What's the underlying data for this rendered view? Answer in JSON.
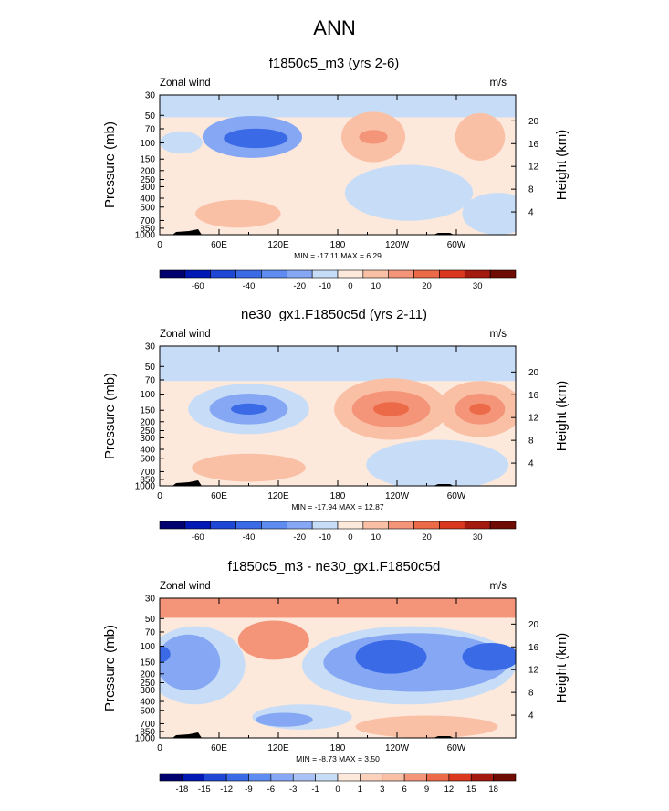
{
  "page": {
    "title": "ANN"
  },
  "chart_data": [
    {
      "type": "contour",
      "title": "f1850c5_m3 (yrs 2-6)",
      "left_label": "Zonal wind",
      "right_label": "m/s",
      "ylabel": "Pressure (mb)",
      "ylabel_right": "Height (km)",
      "x_ticks": [
        "0",
        "60E",
        "120E",
        "180",
        "120W",
        "60W"
      ],
      "y_ticks": [
        "30",
        "50",
        "70",
        "100",
        "150",
        "200",
        "250",
        "300",
        "400",
        "500",
        "700",
        "850",
        "1000"
      ],
      "height_ticks": [
        "20",
        "16",
        "12",
        "8",
        "4"
      ],
      "stats": "MIN = -17.11  MAX =  6.29",
      "colorbar_labels": [
        "-60",
        "-40",
        "-20",
        "-10",
        "0",
        "10",
        "20",
        "30"
      ],
      "features": [
        {
          "kind": "rect",
          "y1": 0,
          "y2": 0.16,
          "x1": 0,
          "x2": 1,
          "level": -1
        },
        {
          "kind": "blob",
          "cx": 0.26,
          "cy": 0.3,
          "rx": 0.14,
          "ry": 0.15,
          "level": -2
        },
        {
          "kind": "blob",
          "cx": 0.27,
          "cy": 0.31,
          "rx": 0.09,
          "ry": 0.07,
          "level": -3
        },
        {
          "kind": "blob",
          "cx": 0.06,
          "cy": 0.34,
          "rx": 0.06,
          "ry": 0.08,
          "level": -1
        },
        {
          "kind": "blob",
          "cx": 0.6,
          "cy": 0.3,
          "rx": 0.09,
          "ry": 0.18,
          "level": 1
        },
        {
          "kind": "blob",
          "cx": 0.6,
          "cy": 0.3,
          "rx": 0.04,
          "ry": 0.05,
          "level": 2
        },
        {
          "kind": "blob",
          "cx": 0.9,
          "cy": 0.3,
          "rx": 0.07,
          "ry": 0.17,
          "level": 1
        },
        {
          "kind": "blob",
          "cx": 0.22,
          "cy": 0.85,
          "rx": 0.12,
          "ry": 0.1,
          "level": 1
        },
        {
          "kind": "blob",
          "cx": 0.7,
          "cy": 0.7,
          "rx": 0.18,
          "ry": 0.2,
          "level": -1
        },
        {
          "kind": "blob",
          "cx": 0.95,
          "cy": 0.85,
          "rx": 0.1,
          "ry": 0.15,
          "level": -1
        }
      ]
    },
    {
      "type": "contour",
      "title": "ne30_gx1.F1850c5d (yrs 2-11)",
      "left_label": "Zonal wind",
      "right_label": "m/s",
      "ylabel": "Pressure (mb)",
      "ylabel_right": "Height (km)",
      "x_ticks": [
        "0",
        "60E",
        "120E",
        "180",
        "120W",
        "60W"
      ],
      "y_ticks": [
        "30",
        "50",
        "70",
        "100",
        "150",
        "200",
        "250",
        "300",
        "400",
        "500",
        "700",
        "850",
        "1000"
      ],
      "height_ticks": [
        "20",
        "16",
        "12",
        "8",
        "4"
      ],
      "stats": "MIN = -17.94  MAX = 12.87",
      "colorbar_labels": [
        "-60",
        "-40",
        "-20",
        "-10",
        "0",
        "10",
        "20",
        "30"
      ],
      "features": [
        {
          "kind": "rect",
          "y1": 0,
          "y2": 0.25,
          "x1": 0,
          "x2": 1,
          "level": -1
        },
        {
          "kind": "blob",
          "cx": 0.25,
          "cy": 0.45,
          "rx": 0.17,
          "ry": 0.18,
          "level": -1
        },
        {
          "kind": "blob",
          "cx": 0.25,
          "cy": 0.45,
          "rx": 0.11,
          "ry": 0.11,
          "level": -2
        },
        {
          "kind": "blob",
          "cx": 0.25,
          "cy": 0.45,
          "rx": 0.05,
          "ry": 0.04,
          "level": -3
        },
        {
          "kind": "blob",
          "cx": 0.65,
          "cy": 0.45,
          "rx": 0.16,
          "ry": 0.22,
          "level": 1
        },
        {
          "kind": "blob",
          "cx": 0.65,
          "cy": 0.45,
          "rx": 0.11,
          "ry": 0.13,
          "level": 2
        },
        {
          "kind": "blob",
          "cx": 0.65,
          "cy": 0.45,
          "rx": 0.05,
          "ry": 0.05,
          "level": 3
        },
        {
          "kind": "blob",
          "cx": 0.9,
          "cy": 0.45,
          "rx": 0.12,
          "ry": 0.2,
          "level": 1
        },
        {
          "kind": "blob",
          "cx": 0.9,
          "cy": 0.45,
          "rx": 0.07,
          "ry": 0.11,
          "level": 2
        },
        {
          "kind": "blob",
          "cx": 0.9,
          "cy": 0.45,
          "rx": 0.03,
          "ry": 0.04,
          "level": 3
        },
        {
          "kind": "blob",
          "cx": 0.25,
          "cy": 0.87,
          "rx": 0.16,
          "ry": 0.1,
          "level": 1
        },
        {
          "kind": "blob",
          "cx": 0.78,
          "cy": 0.85,
          "rx": 0.2,
          "ry": 0.18,
          "level": -1
        }
      ]
    },
    {
      "type": "contour",
      "title": "f1850c5_m3 - ne30_gx1.F1850c5d",
      "left_label": "Zonal wind",
      "right_label": "m/s",
      "ylabel": "Pressure (mb)",
      "ylabel_right": "Height (km)",
      "x_ticks": [
        "0",
        "60E",
        "120E",
        "180",
        "120W",
        "60W"
      ],
      "y_ticks": [
        "30",
        "50",
        "70",
        "100",
        "150",
        "200",
        "250",
        "300",
        "400",
        "500",
        "700",
        "850",
        "1000"
      ],
      "height_ticks": [
        "20",
        "16",
        "12",
        "8",
        "4"
      ],
      "stats": "MIN = -8.73  MAX =  3.50",
      "colorbar_labels": [
        "-18",
        "-15",
        "-12",
        "-9",
        "-6",
        "-3",
        "-1",
        "0",
        "1",
        "3",
        "6",
        "9",
        "12",
        "15",
        "18"
      ],
      "features": [
        {
          "kind": "rect",
          "y1": 0,
          "y2": 0.14,
          "x1": 0,
          "x2": 1,
          "level": 2
        },
        {
          "kind": "blob",
          "cx": 0.1,
          "cy": 0.48,
          "rx": 0.14,
          "ry": 0.28,
          "level": -1
        },
        {
          "kind": "blob",
          "cx": 0.08,
          "cy": 0.46,
          "rx": 0.09,
          "ry": 0.2,
          "level": -2
        },
        {
          "kind": "blob",
          "cx": 0.0,
          "cy": 0.4,
          "rx": 0.03,
          "ry": 0.06,
          "level": -3
        },
        {
          "kind": "blob",
          "cx": 0.7,
          "cy": 0.48,
          "rx": 0.3,
          "ry": 0.28,
          "level": -1
        },
        {
          "kind": "blob",
          "cx": 0.72,
          "cy": 0.46,
          "rx": 0.26,
          "ry": 0.21,
          "level": -2
        },
        {
          "kind": "blob",
          "cx": 0.65,
          "cy": 0.42,
          "rx": 0.1,
          "ry": 0.12,
          "level": -3
        },
        {
          "kind": "blob",
          "cx": 0.93,
          "cy": 0.42,
          "rx": 0.08,
          "ry": 0.1,
          "level": -3
        },
        {
          "kind": "blob",
          "cx": 0.32,
          "cy": 0.3,
          "rx": 0.1,
          "ry": 0.14,
          "level": 2
        },
        {
          "kind": "blob",
          "cx": 0.4,
          "cy": 0.85,
          "rx": 0.14,
          "ry": 0.09,
          "level": -1
        },
        {
          "kind": "blob",
          "cx": 0.35,
          "cy": 0.87,
          "rx": 0.08,
          "ry": 0.05,
          "level": -2
        },
        {
          "kind": "blob",
          "cx": 0.75,
          "cy": 0.92,
          "rx": 0.2,
          "ry": 0.08,
          "level": 1
        }
      ]
    }
  ]
}
